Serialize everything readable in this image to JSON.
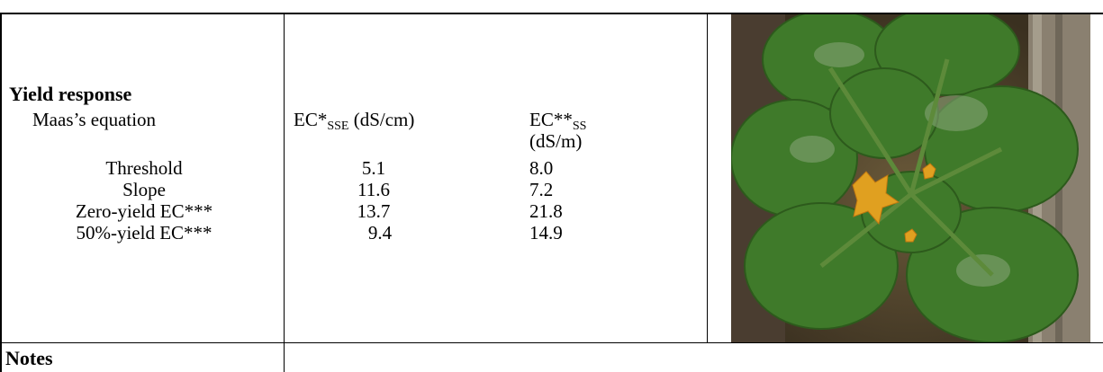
{
  "section_title": "Yield response",
  "equation_label": "Maas’s equation",
  "col1_header": {
    "main": "EC*",
    "sub": "SSE",
    "unit": " (dS/cm)"
  },
  "col2_header": {
    "main": "EC**",
    "sub": "SS",
    "unit": "(dS/m)"
  },
  "rows": [
    {
      "label": "Threshold",
      "sse": "5.1",
      "ss": "8.0"
    },
    {
      "label": "Slope",
      "sse": "11.6",
      "ss": "7.2"
    },
    {
      "label": "Zero-yield EC***",
      "sse": "13.7",
      "ss": "21.8"
    },
    {
      "label": "50%-yield EC***",
      "sse": "9.4",
      "ss": "14.9"
    }
  ],
  "notes_label": "Notes",
  "image_alt_name": "zucchini plant photo",
  "colors": {
    "border": "#000000",
    "flower": "#e0a020",
    "leaf": "#3f7a2a"
  }
}
